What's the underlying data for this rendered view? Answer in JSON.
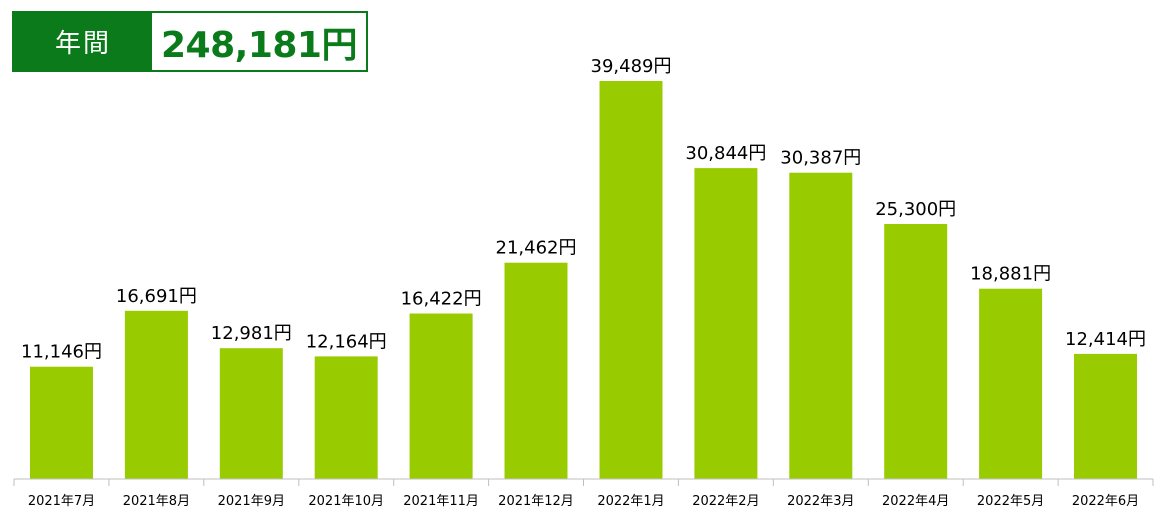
{
  "summary": {
    "label": "年間",
    "value": "248,181円"
  },
  "colors": {
    "bar": "#99cc00",
    "accent": "#0a7a1a",
    "axis": "#bfbfbf"
  },
  "chart_data": {
    "type": "bar",
    "categories": [
      "2021年7月",
      "2021年8月",
      "2021年9月",
      "2021年10月",
      "2021年11月",
      "2021年12月",
      "2022年1月",
      "2022年2月",
      "2022年3月",
      "2022年4月",
      "2022年5月",
      "2022年6月"
    ],
    "values": [
      11146,
      16691,
      12981,
      12164,
      16422,
      21462,
      39489,
      30844,
      30387,
      25300,
      18881,
      12414
    ],
    "data_labels": [
      "11,146円",
      "16,691円",
      "12,981円",
      "12,164円",
      "16,422円",
      "21,462円",
      "39,489円",
      "30,844円",
      "30,387円",
      "25,300円",
      "18,881円",
      "12,414円"
    ],
    "ylim": [
      0,
      39489
    ],
    "grid": false,
    "legend": "none",
    "title": "",
    "xlabel": "",
    "ylabel": ""
  }
}
